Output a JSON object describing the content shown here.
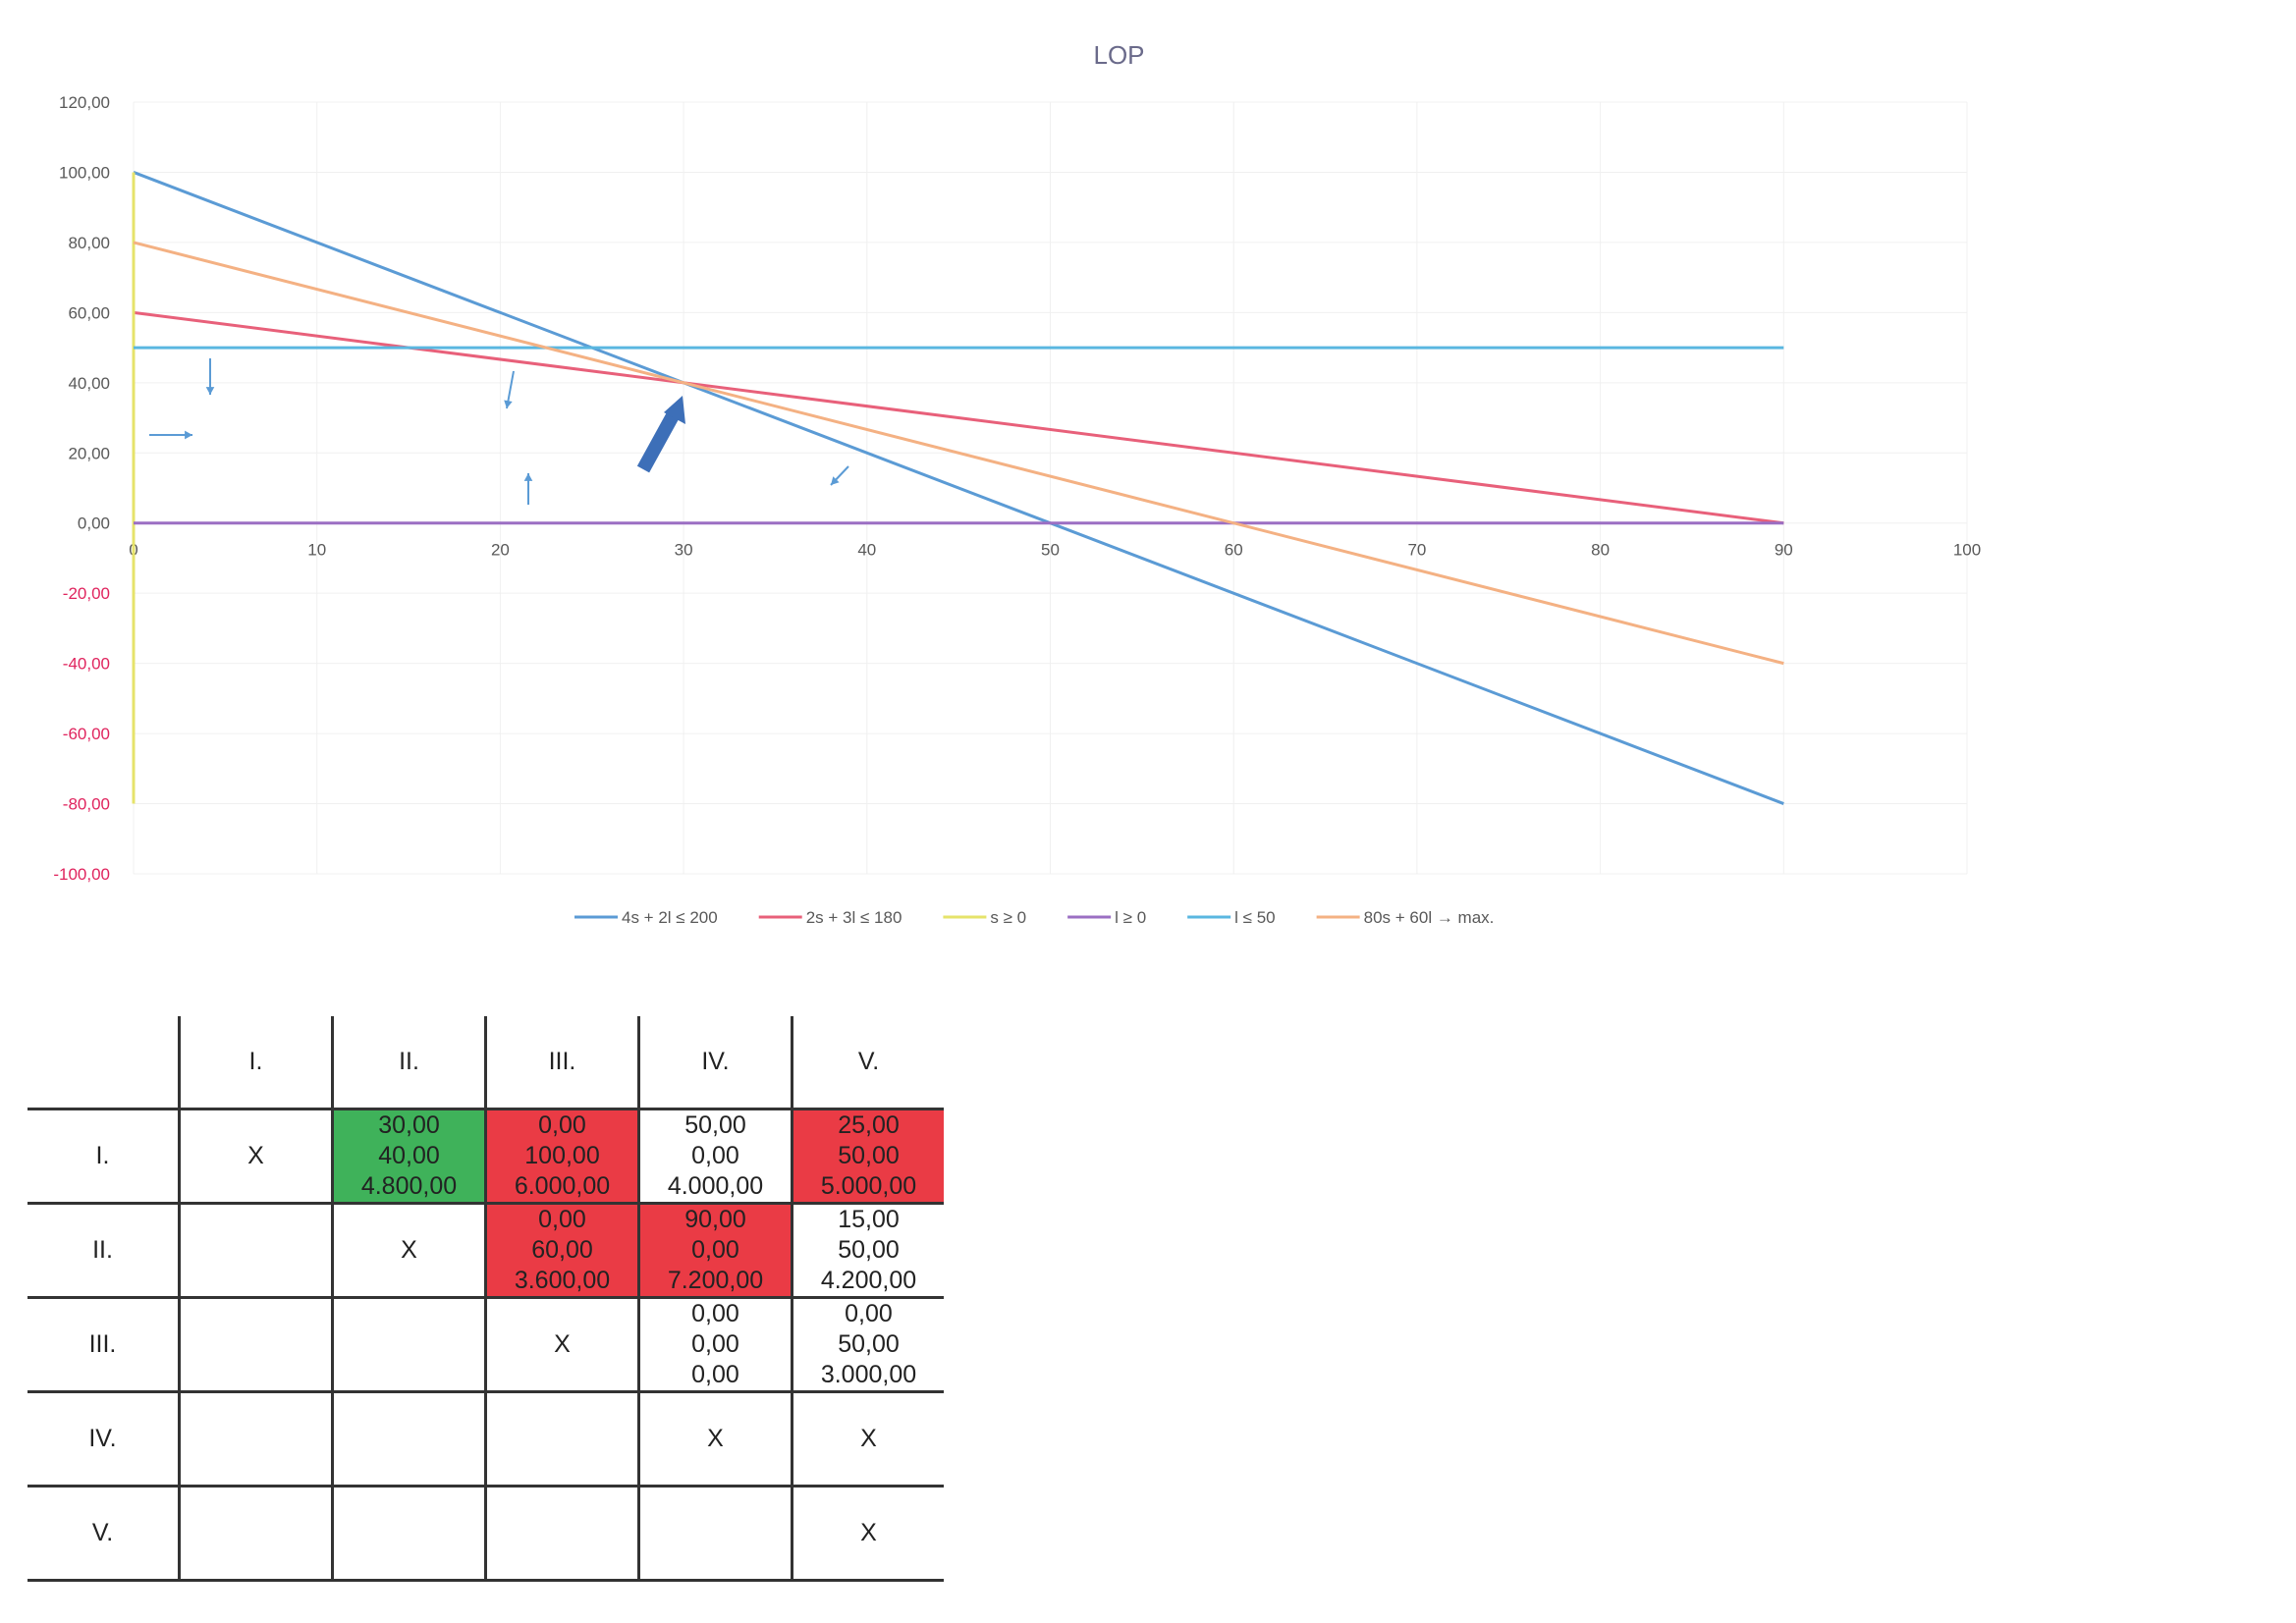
{
  "chart_data": {
    "type": "line",
    "title": "LOP",
    "xlim": [
      0,
      100
    ],
    "ylim": [
      -100,
      120
    ],
    "x_ticks": [
      "0",
      "10",
      "20",
      "30",
      "40",
      "50",
      "60",
      "70",
      "80",
      "90",
      "100"
    ],
    "y_ticks": [
      "120,00",
      "100,00",
      "80,00",
      "60,00",
      "40,00",
      "20,00",
      "0,00",
      "-20,00",
      "-40,00",
      "-60,00",
      "-80,00",
      "-100,00"
    ],
    "grid": true,
    "legend_position": "bottom",
    "series": [
      {
        "name": "4s + 2l ≤ 200",
        "color": "#5b9bd5",
        "x": [
          0,
          90
        ],
        "y": [
          100,
          -80
        ]
      },
      {
        "name": "2s + 3l ≤ 180",
        "color": "#e8607a",
        "x": [
          0,
          90
        ],
        "y": [
          60,
          0
        ]
      },
      {
        "name": "s ≥ 0",
        "color": "#e6e36a",
        "x": [
          0,
          0
        ],
        "y": [
          100,
          -80
        ]
      },
      {
        "name": "l ≥ 0",
        "color": "#9b6fc3",
        "x": [
          0,
          90
        ],
        "y": [
          0,
          0
        ]
      },
      {
        "name": "l ≤ 50",
        "color": "#5ab7e0",
        "x": [
          0,
          90
        ],
        "y": [
          50,
          50
        ]
      },
      {
        "name": "80s + 60l → max.",
        "color": "#f4b183",
        "x": [
          0,
          90
        ],
        "y": [
          80,
          -40
        ]
      }
    ]
  },
  "table": {
    "col_headers": [
      "",
      "I.",
      "II.",
      "III.",
      "IV.",
      "V."
    ],
    "rows": [
      {
        "label": "I.",
        "cells": [
          {
            "lines": [
              "X"
            ],
            "color": ""
          },
          {
            "lines": [
              "30,00",
              "40,00",
              "4.800,00"
            ],
            "color": "green"
          },
          {
            "lines": [
              "0,00",
              "100,00",
              "6.000,00"
            ],
            "color": "red"
          },
          {
            "lines": [
              "50,00",
              "0,00",
              "4.000,00"
            ],
            "color": ""
          },
          {
            "lines": [
              "25,00",
              "50,00",
              "5.000,00"
            ],
            "color": "red"
          }
        ]
      },
      {
        "label": "II.",
        "cells": [
          {
            "lines": [],
            "color": ""
          },
          {
            "lines": [
              "X"
            ],
            "color": ""
          },
          {
            "lines": [
              "0,00",
              "60,00",
              "3.600,00"
            ],
            "color": "red"
          },
          {
            "lines": [
              "90,00",
              "0,00",
              "7.200,00"
            ],
            "color": "red"
          },
          {
            "lines": [
              "15,00",
              "50,00",
              "4.200,00"
            ],
            "color": ""
          }
        ]
      },
      {
        "label": "III.",
        "cells": [
          {
            "lines": [],
            "color": ""
          },
          {
            "lines": [],
            "color": ""
          },
          {
            "lines": [
              "X"
            ],
            "color": ""
          },
          {
            "lines": [
              "0,00",
              "0,00",
              "0,00"
            ],
            "color": ""
          },
          {
            "lines": [
              "0,00",
              "50,00",
              "3.000,00"
            ],
            "color": ""
          }
        ]
      },
      {
        "label": "IV.",
        "cells": [
          {
            "lines": [],
            "color": ""
          },
          {
            "lines": [],
            "color": ""
          },
          {
            "lines": [],
            "color": ""
          },
          {
            "lines": [
              "X"
            ],
            "color": ""
          },
          {
            "lines": [
              "X"
            ],
            "color": ""
          }
        ]
      },
      {
        "label": "V.",
        "cells": [
          {
            "lines": [],
            "color": ""
          },
          {
            "lines": [],
            "color": ""
          },
          {
            "lines": [],
            "color": ""
          },
          {
            "lines": [],
            "color": ""
          },
          {
            "lines": [
              "X"
            ],
            "color": ""
          }
        ]
      }
    ]
  }
}
